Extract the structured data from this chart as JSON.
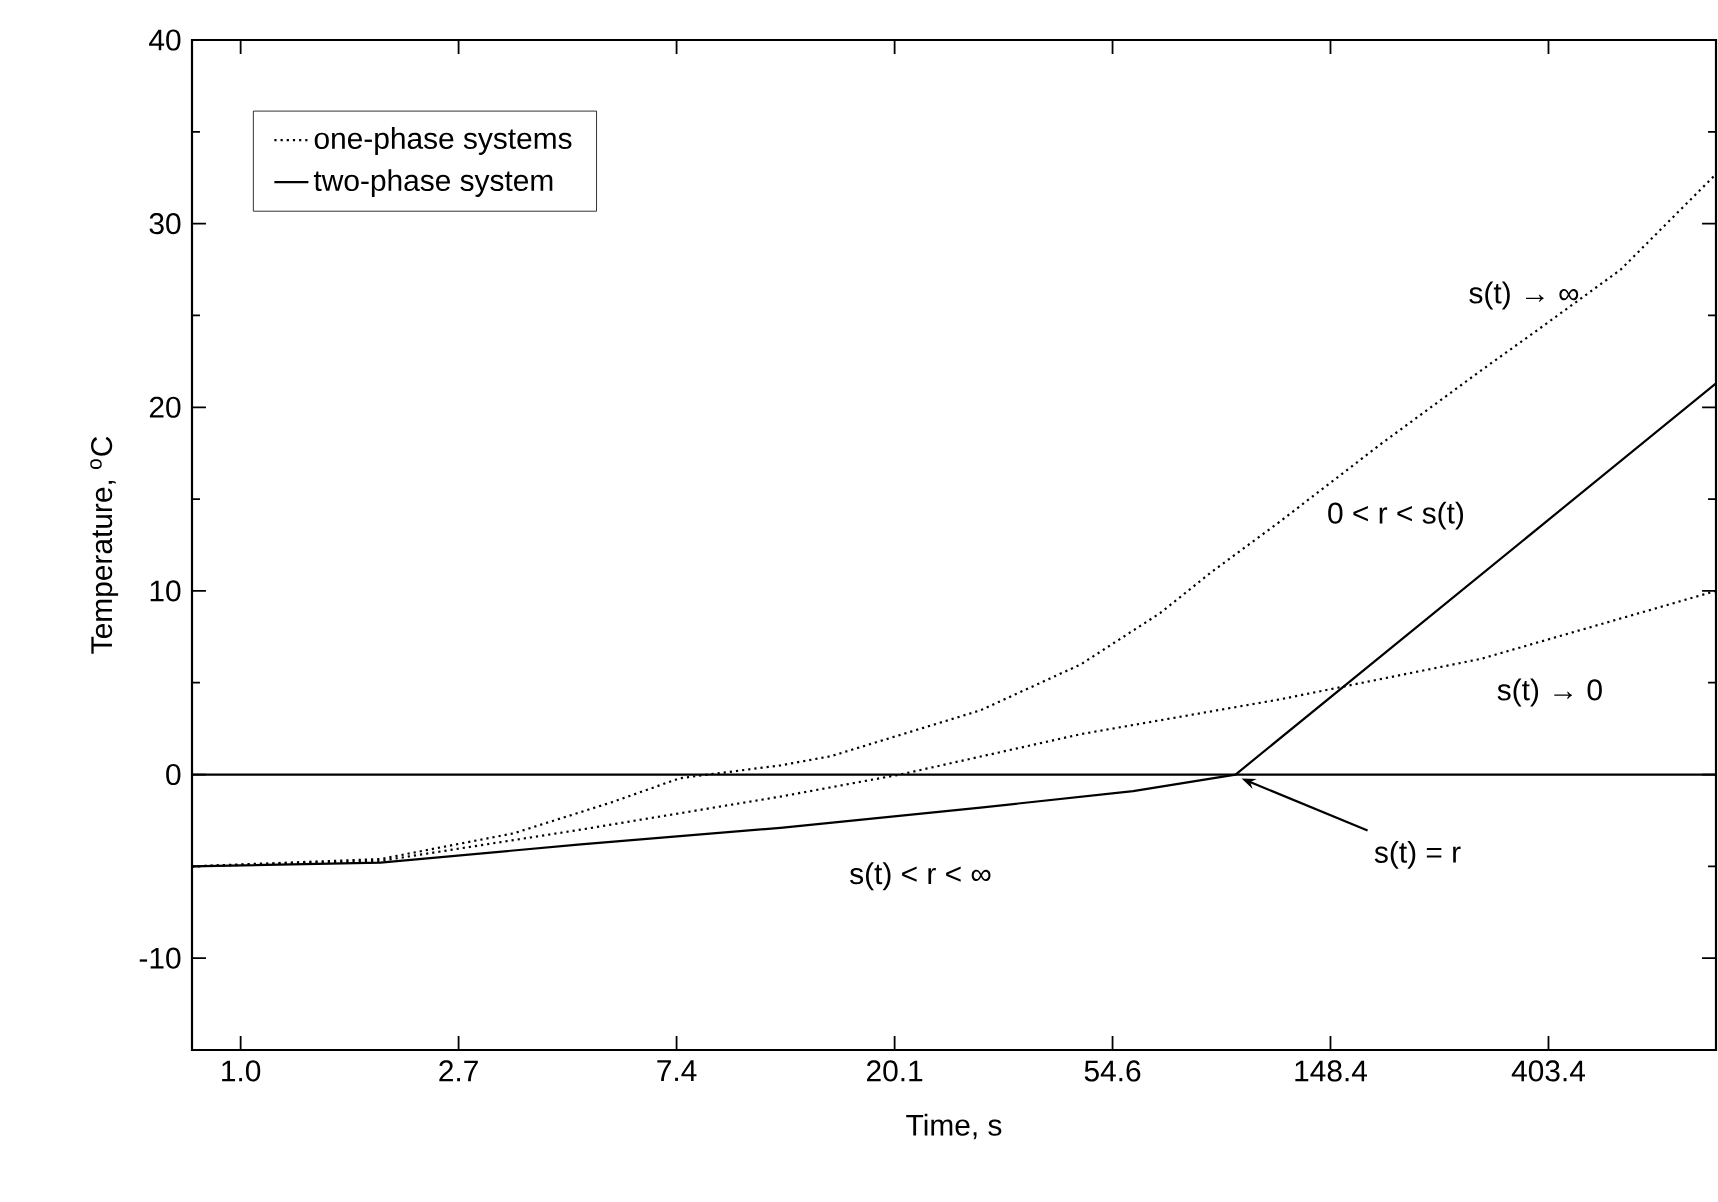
{
  "chart_data": {
    "type": "line",
    "xlabel": "Time,  s",
    "ylabel": "Temperature, $^{o}$C",
    "log": "x",
    "xlim": [
      0.8,
      870
    ],
    "ylim": [
      -15,
      40
    ],
    "xticks": [
      {
        "value": 1,
        "label": "1.0"
      },
      {
        "value": 2.718,
        "label": "2.7"
      },
      {
        "value": 7.389,
        "label": "7.4"
      },
      {
        "value": 20.09,
        "label": "20.1"
      },
      {
        "value": 54.6,
        "label": "54.6"
      },
      {
        "value": 148.4,
        "label": "148.4"
      },
      {
        "value": 403.4,
        "label": "403.4"
      }
    ],
    "yticks": [
      -10,
      0,
      10,
      20,
      30,
      40
    ],
    "legend": "top left",
    "marker": "none",
    "series": [
      {
        "name": "one-phase systems",
        "color": "#000000",
        "line_style": "dotted",
        "x": [
          0.8,
          1.9,
          3.5,
          5.5,
          7.5,
          11.9,
          15,
          29.8,
          47.2,
          68,
          85.7,
          118,
          187,
          296,
          388,
          562,
          870
        ],
        "values": [
          -5,
          -4.6,
          -3.2,
          -1.5,
          -0.2,
          0.5,
          1,
          3.5,
          6,
          8.8,
          11,
          13.8,
          18,
          22,
          24.3,
          27.5,
          32.7
        ]
      },
      {
        "color": "#000000",
        "line_style": "dotted",
        "x": [
          0.8,
          1.9,
          4.76,
          11.9,
          20.6,
          47.2,
          118,
          296,
          870
        ],
        "values": [
          -5,
          -4.7,
          -3,
          -1.2,
          0,
          2.2,
          4.1,
          6.3,
          10
        ]
      },
      {
        "name": "two-phase system",
        "color": "#000000",
        "line_style": "solid",
        "x": [
          0.8,
          1.9,
          4.76,
          11.9,
          29.8,
          60,
          96,
          870
        ],
        "values": [
          -5,
          -4.8,
          -3.8,
          -2.9,
          -1.8,
          -0.9,
          0,
          21.3
        ]
      }
    ],
    "ref_lines": [
      {
        "axis": "y",
        "value": 0,
        "color": "#000000",
        "line_style": "solid"
      }
    ],
    "annotations": [
      "s(t) → ∞",
      "0 < r < s(t)",
      "s(t) → 0",
      "s(t) < r < ∞",
      {
        "text": "s(t) = r",
        "x": 96,
        "y": 0
      }
    ]
  }
}
